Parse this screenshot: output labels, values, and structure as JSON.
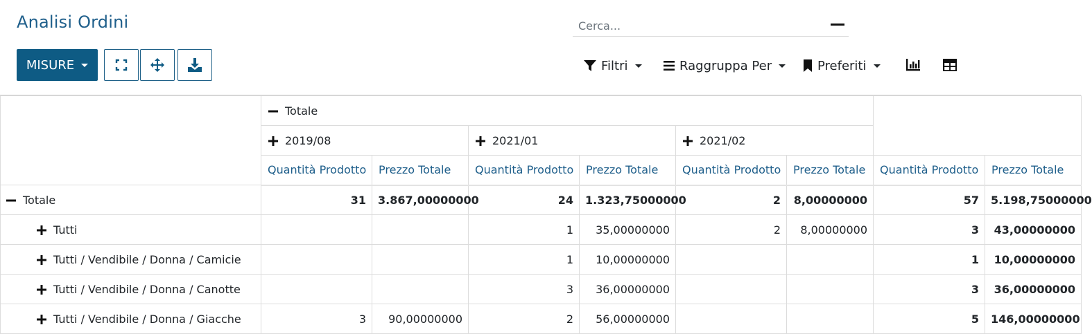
{
  "page": {
    "title": "Analisi Ordini"
  },
  "search": {
    "placeholder": "Cerca..."
  },
  "toolbar": {
    "measures_label": "MISURE",
    "expand_icon": "expand-icon",
    "flip_icon": "flip-axis-icon",
    "download_icon": "download-icon"
  },
  "filters": {
    "filters_label": "Filtri",
    "groupby_label": "Raggruppa Per",
    "favorites_label": "Preferiti"
  },
  "views": {
    "graph_icon": "bar-chart-icon",
    "pivot_icon": "pivot-table-icon"
  },
  "colors": {
    "primary": "#0e5b84",
    "link": "#1f5f8b"
  },
  "pivot": {
    "col_total_label": "Totale",
    "col_groups": [
      {
        "label": "2019/08"
      },
      {
        "label": "2021/01"
      },
      {
        "label": "2021/02"
      }
    ],
    "measures": [
      "Quantità Prodotto",
      "Prezzo Totale"
    ],
    "rows": [
      {
        "label": "Totale",
        "level": 0,
        "expanded": true,
        "cells": [
          "31",
          "3.867,00000000",
          "24",
          "1.323,75000000",
          "2",
          "8,00000000",
          "57",
          "5.198,75000000"
        ]
      },
      {
        "label": "Tutti",
        "level": 1,
        "expanded": false,
        "cells": [
          "",
          "",
          "1",
          "35,00000000",
          "2",
          "8,00000000",
          "3",
          "43,00000000"
        ]
      },
      {
        "label": "Tutti / Vendibile / Donna / Camicie",
        "level": 1,
        "expanded": false,
        "cells": [
          "",
          "",
          "1",
          "10,00000000",
          "",
          "",
          "1",
          "10,00000000"
        ]
      },
      {
        "label": "Tutti / Vendibile / Donna / Canotte",
        "level": 1,
        "expanded": false,
        "cells": [
          "",
          "",
          "3",
          "36,00000000",
          "",
          "",
          "3",
          "36,00000000"
        ]
      },
      {
        "label": "Tutti / Vendibile / Donna / Giacche",
        "level": 1,
        "expanded": false,
        "cells": [
          "3",
          "90,00000000",
          "2",
          "56,00000000",
          "",
          "",
          "5",
          "146,00000000"
        ]
      }
    ]
  }
}
